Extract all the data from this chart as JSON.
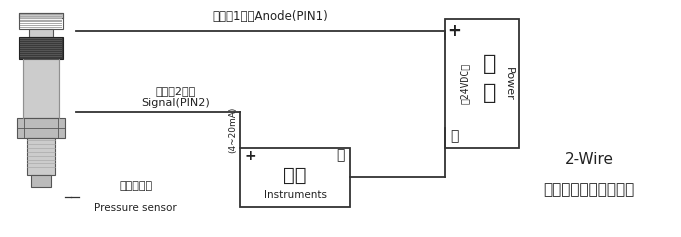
{
  "bg_color": "#ffffff",
  "line_color": "#333333",
  "title_2wire": "2-Wire",
  "title_cn": "两线制电流输出接线图",
  "label_anode": "正极（1脚）Anode(PIN1)",
  "label_signal_cn": "信号（2脚）",
  "label_signal_en": "Signal(PIN2)",
  "label_4_20ma": "(4~20mA)",
  "label_power_cn": "电源",
  "label_power_en": "Power",
  "label_power_volt": "－24VDC＋",
  "label_plus": "+",
  "label_minus": "－",
  "label_instrument_cn": "仪器",
  "label_instrument_en": "Instruments",
  "label_instrument_plus": "+",
  "label_instrument_minus": "－",
  "label_sensor_cn": "压力传感器",
  "label_sensor_en": "Pressure sensor",
  "wire_color": "#333333",
  "sensor_body_color": "#d0d0d0",
  "sensor_dark_color": "#444444",
  "sensor_light_color": "#e8e8e8"
}
